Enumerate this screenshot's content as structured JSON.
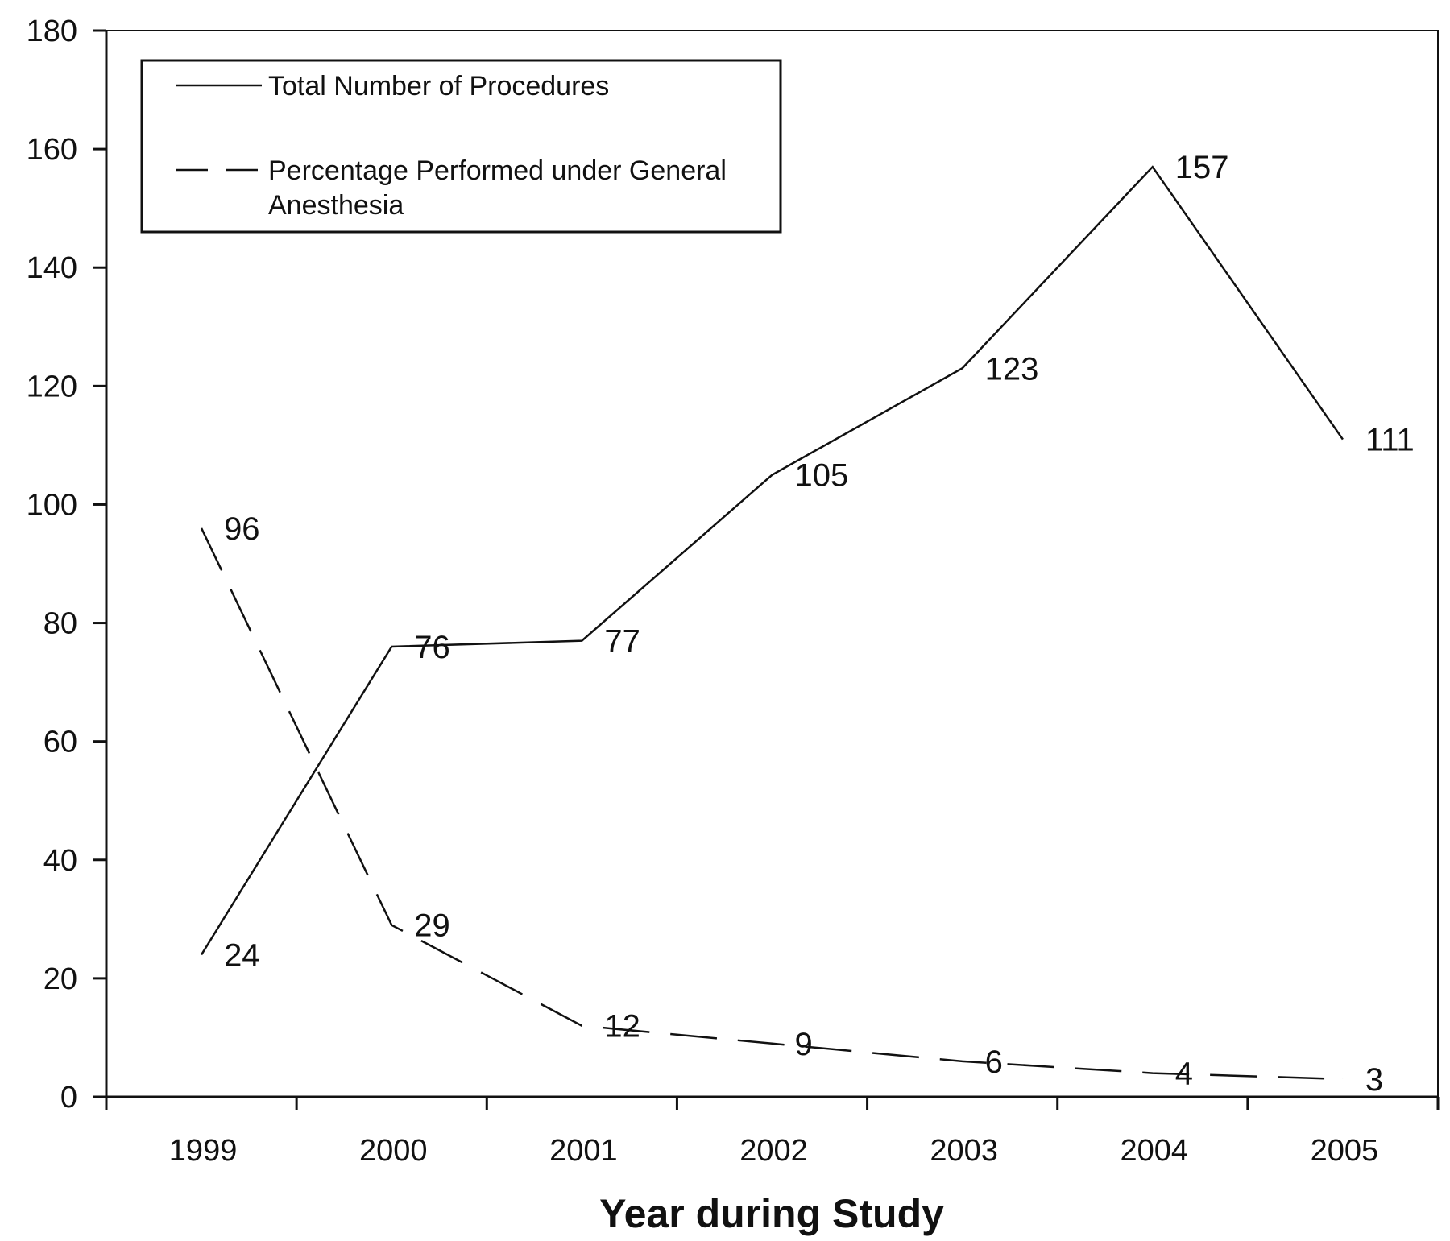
{
  "chart_data": {
    "type": "line",
    "title": "",
    "xlabel": "Year during Study",
    "ylabel": "",
    "categories": [
      "1999",
      "2000",
      "2001",
      "2002",
      "2003",
      "2004",
      "2005"
    ],
    "ylim": [
      0,
      180
    ],
    "yticks": [
      "0",
      "20",
      "40",
      "60",
      "80",
      "100",
      "120",
      "140",
      "160",
      "180"
    ],
    "grid": false,
    "legend_position": "top-left",
    "series": [
      {
        "name": "Total Number of Procedures",
        "style": "solid",
        "values": [
          24,
          76,
          77,
          105,
          123,
          157,
          111
        ],
        "labels": [
          "24",
          "76",
          "77",
          "105",
          "123",
          "157",
          "111"
        ]
      },
      {
        "name": "Percentage Performed under General Anesthesia",
        "style": "dashed",
        "values": [
          96,
          29,
          12,
          9,
          6,
          4,
          3
        ],
        "labels": [
          "96",
          "29",
          "12",
          "9",
          "6",
          "4",
          "3"
        ]
      }
    ],
    "legend": {
      "entries": [
        {
          "lines": [
            "Total Number of Procedures"
          ]
        },
        {
          "lines": [
            "Percentage Performed under General",
            "Anesthesia"
          ]
        }
      ]
    },
    "colors": {
      "line": "#111111",
      "background": "#ffffff"
    }
  }
}
